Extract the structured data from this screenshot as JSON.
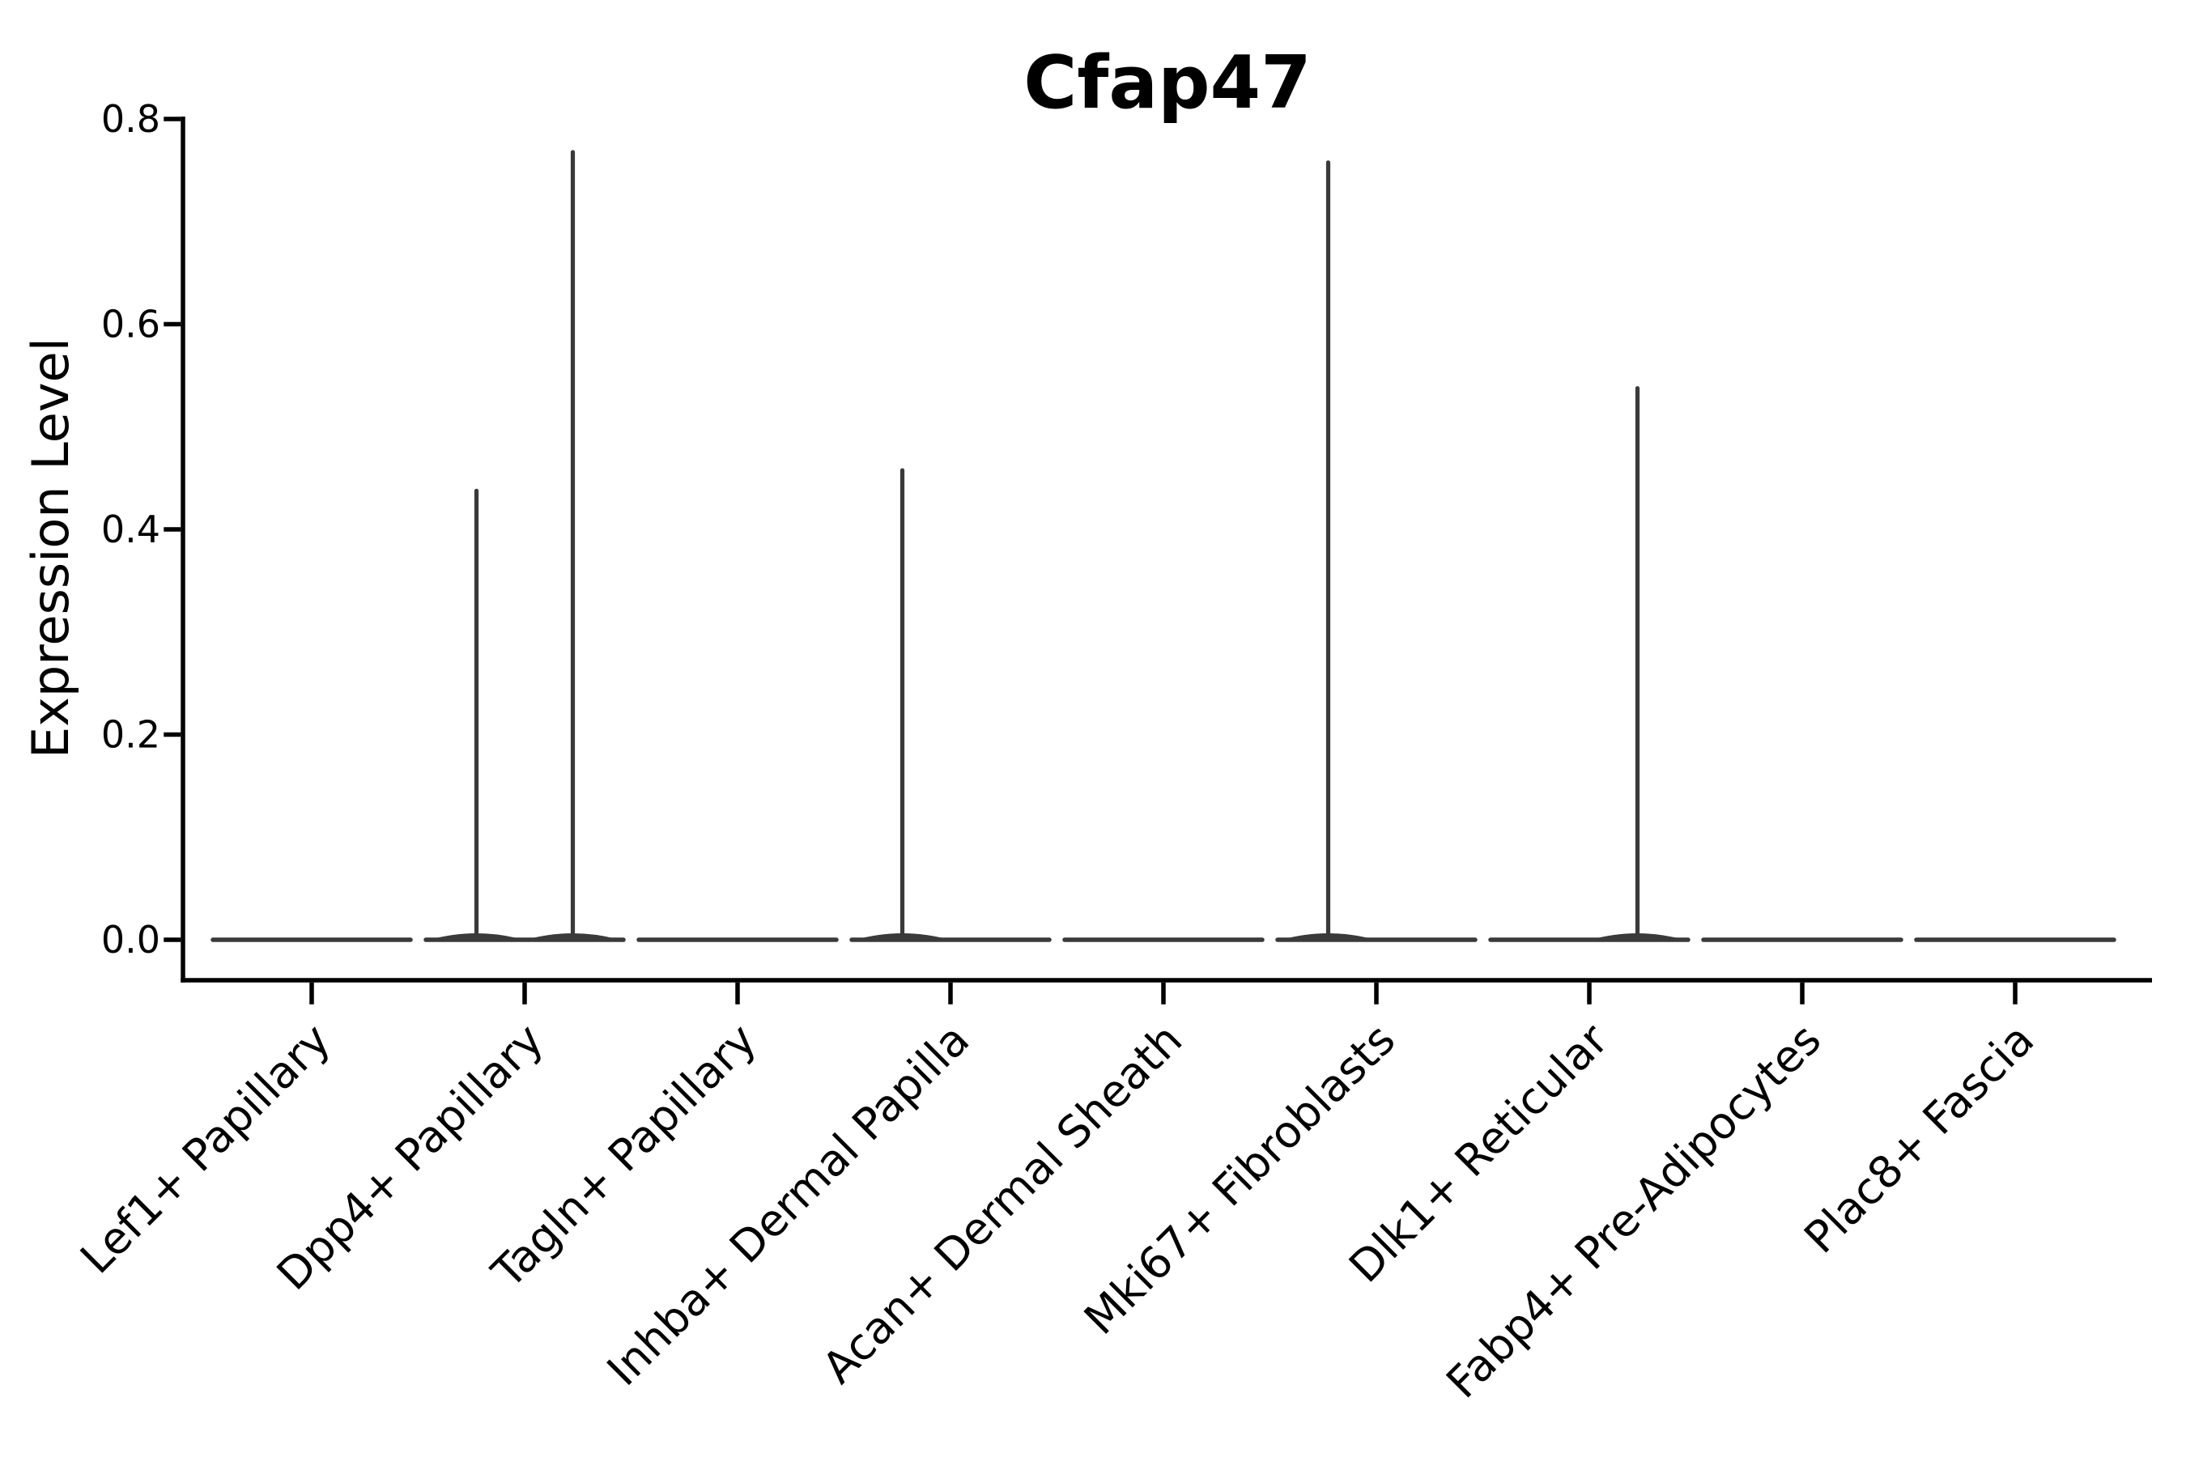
{
  "chart_data": {
    "type": "violin",
    "title": "Cfap47",
    "xlabel": "",
    "ylabel": "Expression Level",
    "ylim": [
      0.0,
      0.8
    ],
    "yticks": [
      "0.0",
      "0.2",
      "0.4",
      "0.6",
      "0.8"
    ],
    "grid": false,
    "legend": false,
    "groups_per_category": 2,
    "categories": [
      "Lef1+ Papillary",
      "Dpp4+ Papillary",
      "Tagln+ Papillary",
      "Inhba+ Dermal Papilla",
      "Acan+ Dermal Sheath",
      "Mki67+ Fibroblasts",
      "Dlk1+ Reticular",
      "Fabp4+ Pre-Adipocytes",
      "Plac8+ Fascia"
    ],
    "series": [
      {
        "category": "Lef1+ Papillary",
        "violin_max_expression": [
          0.0,
          0.0
        ]
      },
      {
        "category": "Dpp4+ Papillary",
        "violin_max_expression": [
          0.44,
          0.77
        ]
      },
      {
        "category": "Tagln+ Papillary",
        "violin_max_expression": [
          0.0,
          0.0
        ]
      },
      {
        "category": "Inhba+ Dermal Papilla",
        "violin_max_expression": [
          0.46,
          0.0
        ]
      },
      {
        "category": "Acan+ Dermal Sheath",
        "violin_max_expression": [
          0.0,
          0.0
        ]
      },
      {
        "category": "Mki67+ Fibroblasts",
        "violin_max_expression": [
          0.76,
          0.0
        ]
      },
      {
        "category": "Dlk1+ Reticular",
        "violin_max_expression": [
          0.0,
          0.54
        ]
      },
      {
        "category": "Fabp4+ Pre-Adipocytes",
        "violin_max_expression": [
          0.0,
          0.0
        ]
      },
      {
        "category": "Plac8+ Fascia",
        "violin_max_expression": [
          0.0,
          0.0
        ]
      }
    ],
    "colors": {
      "violin": "#3a3a3a",
      "axis": "#000000",
      "text": "#000000",
      "background": "#ffffff"
    }
  }
}
